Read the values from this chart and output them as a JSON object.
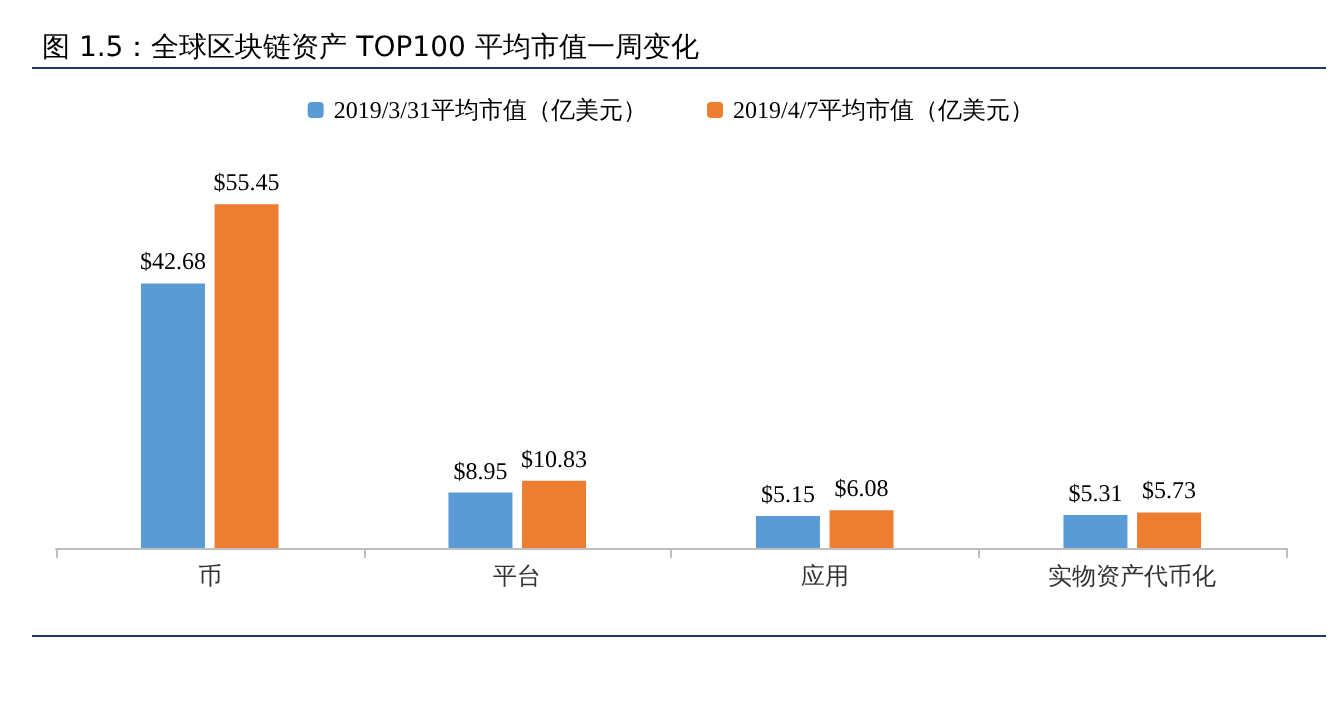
{
  "chart_data": {
    "type": "bar",
    "title": "图 1.5：全球区块链资产 TOP100 平均市值一周变化",
    "categories": [
      "币",
      "平台",
      "应用",
      "实物资产代币化"
    ],
    "series": [
      {
        "name": "2019/3/31平均市值（亿美元）",
        "color": "#5b9bd5",
        "values": [
          42.68,
          8.95,
          5.15,
          5.31
        ],
        "value_labels": [
          "$42.68",
          "$8.95",
          "$5.15",
          "$5.31"
        ]
      },
      {
        "name": "2019/4/7平均市值（亿美元）",
        "color": "#ed7d31",
        "values": [
          55.45,
          10.83,
          6.08,
          5.73
        ],
        "value_labels": [
          "$55.45",
          "$10.83",
          "$6.08",
          "$5.73"
        ]
      }
    ],
    "legend": "top",
    "grid": false,
    "tick_labels": "x"
  }
}
